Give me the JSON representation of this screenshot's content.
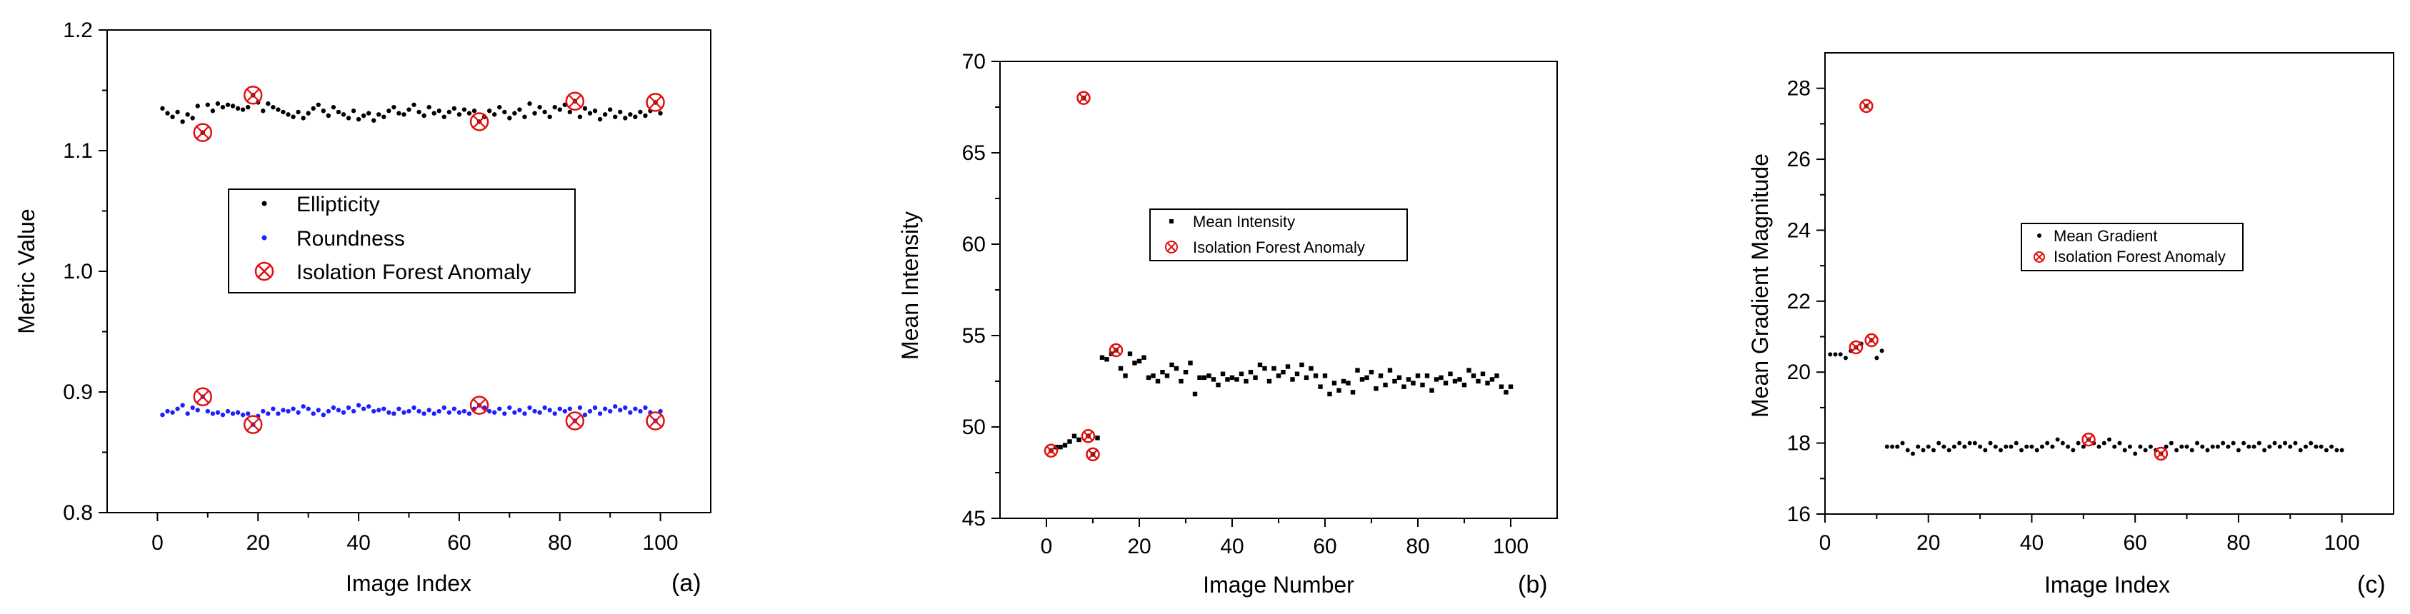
{
  "chart_data": [
    {
      "type": "scatter",
      "panel_label": "(a)",
      "xlabel": "Image Index",
      "ylabel": "Metric Value",
      "xlim": [
        -10,
        110
      ],
      "ylim": [
        0.8,
        1.2
      ],
      "x_ticks": [
        0,
        20,
        40,
        60,
        80,
        100
      ],
      "y_ticks": [
        0.8,
        0.9,
        1.0,
        1.1,
        1.2
      ],
      "x_tick_labels": [
        "0",
        "20",
        "40",
        "60",
        "80",
        "100"
      ],
      "y_tick_labels": [
        "0.8",
        "0.9",
        "1.0",
        "1.1",
        "1.2"
      ],
      "legend_position": "center",
      "colors": {
        "Ellipticity": "#000000",
        "Roundness": "#1f1fff",
        "Isolation Forest Anomaly": "#e01010"
      },
      "series": [
        {
          "name": "Ellipticity",
          "x": [
            1,
            2,
            3,
            4,
            5,
            6,
            7,
            8,
            9,
            10,
            11,
            12,
            13,
            14,
            15,
            16,
            17,
            18,
            19,
            20,
            21,
            22,
            23,
            24,
            25,
            26,
            27,
            28,
            29,
            30,
            31,
            32,
            33,
            34,
            35,
            36,
            37,
            38,
            39,
            40,
            41,
            42,
            43,
            44,
            45,
            46,
            47,
            48,
            49,
            50,
            51,
            52,
            53,
            54,
            55,
            56,
            57,
            58,
            59,
            60,
            61,
            62,
            63,
            64,
            65,
            66,
            67,
            68,
            69,
            70,
            71,
            72,
            73,
            74,
            75,
            76,
            77,
            78,
            79,
            80,
            81,
            82,
            83,
            84,
            85,
            86,
            87,
            88,
            89,
            90,
            91,
            92,
            93,
            94,
            95,
            96,
            97,
            98,
            99,
            100
          ],
          "y": [
            1.135,
            1.131,
            1.128,
            1.132,
            1.124,
            1.13,
            1.127,
            1.137,
            1.115,
            1.138,
            1.133,
            1.139,
            1.136,
            1.138,
            1.137,
            1.135,
            1.134,
            1.136,
            1.146,
            1.14,
            1.133,
            1.139,
            1.136,
            1.134,
            1.132,
            1.13,
            1.128,
            1.132,
            1.127,
            1.131,
            1.135,
            1.138,
            1.133,
            1.129,
            1.136,
            1.132,
            1.13,
            1.127,
            1.133,
            1.126,
            1.129,
            1.131,
            1.125,
            1.13,
            1.128,
            1.133,
            1.136,
            1.131,
            1.13,
            1.134,
            1.138,
            1.132,
            1.129,
            1.136,
            1.131,
            1.133,
            1.128,
            1.132,
            1.135,
            1.13,
            1.134,
            1.131,
            1.133,
            1.124,
            1.128,
            1.133,
            1.13,
            1.136,
            1.132,
            1.127,
            1.131,
            1.134,
            1.128,
            1.139,
            1.131,
            1.136,
            1.132,
            1.128,
            1.136,
            1.134,
            1.138,
            1.132,
            1.141,
            1.128,
            1.135,
            1.131,
            1.133,
            1.126,
            1.13,
            1.134,
            1.128,
            1.132,
            1.127,
            1.13,
            1.128,
            1.132,
            1.129,
            1.133,
            1.14,
            1.131
          ]
        },
        {
          "name": "Roundness",
          "x": [
            1,
            2,
            3,
            4,
            5,
            6,
            7,
            8,
            9,
            10,
            11,
            12,
            13,
            14,
            15,
            16,
            17,
            18,
            19,
            20,
            21,
            22,
            23,
            24,
            25,
            26,
            27,
            28,
            29,
            30,
            31,
            32,
            33,
            34,
            35,
            36,
            37,
            38,
            39,
            40,
            41,
            42,
            43,
            44,
            45,
            46,
            47,
            48,
            49,
            50,
            51,
            52,
            53,
            54,
            55,
            56,
            57,
            58,
            59,
            60,
            61,
            62,
            63,
            64,
            65,
            66,
            67,
            68,
            69,
            70,
            71,
            72,
            73,
            74,
            75,
            76,
            77,
            78,
            79,
            80,
            81,
            82,
            83,
            84,
            85,
            86,
            87,
            88,
            89,
            90,
            91,
            92,
            93,
            94,
            95,
            96,
            97,
            98,
            99,
            100
          ],
          "y": [
            0.881,
            0.884,
            0.883,
            0.886,
            0.889,
            0.882,
            0.887,
            0.885,
            0.896,
            0.884,
            0.882,
            0.883,
            0.881,
            0.884,
            0.882,
            0.883,
            0.881,
            0.882,
            0.873,
            0.88,
            0.884,
            0.882,
            0.886,
            0.882,
            0.885,
            0.884,
            0.886,
            0.883,
            0.888,
            0.886,
            0.882,
            0.885,
            0.881,
            0.884,
            0.887,
            0.885,
            0.883,
            0.887,
            0.884,
            0.889,
            0.886,
            0.888,
            0.884,
            0.885,
            0.886,
            0.883,
            0.882,
            0.886,
            0.883,
            0.884,
            0.887,
            0.884,
            0.882,
            0.885,
            0.882,
            0.884,
            0.887,
            0.883,
            0.886,
            0.883,
            0.884,
            0.882,
            0.886,
            0.889,
            0.887,
            0.884,
            0.883,
            0.886,
            0.882,
            0.887,
            0.883,
            0.885,
            0.882,
            0.887,
            0.884,
            0.883,
            0.887,
            0.885,
            0.882,
            0.886,
            0.884,
            0.886,
            0.876,
            0.887,
            0.881,
            0.884,
            0.887,
            0.882,
            0.886,
            0.884,
            0.888,
            0.885,
            0.887,
            0.883,
            0.886,
            0.884,
            0.887,
            0.883,
            0.876,
            0.884
          ]
        },
        {
          "name": "Isolation Forest Anomaly",
          "x": [
            9,
            19,
            64,
            83,
            99,
            9,
            19,
            64,
            83,
            99
          ],
          "y": [
            1.115,
            1.146,
            1.124,
            1.141,
            1.14,
            0.896,
            0.873,
            0.889,
            0.876,
            0.876
          ]
        }
      ]
    },
    {
      "type": "scatter",
      "panel_label": "(b)",
      "xlabel": "Image Number",
      "ylabel": "Mean Intensity",
      "xlim": [
        -10,
        110
      ],
      "ylim": [
        45,
        70
      ],
      "x_ticks": [
        0,
        20,
        40,
        60,
        80,
        100
      ],
      "y_ticks": [
        45,
        50,
        55,
        60,
        65,
        70
      ],
      "x_tick_labels": [
        "0",
        "20",
        "40",
        "60",
        "80",
        "100"
      ],
      "y_tick_labels": [
        "45",
        "50",
        "55",
        "60",
        "65",
        "70"
      ],
      "legend_position": "center-right",
      "colors": {
        "Mean Intensity": "#000000",
        "Isolation Forest Anomaly": "#e01010"
      },
      "series": [
        {
          "name": "Mean Intensity",
          "x": [
            1,
            2,
            3,
            4,
            5,
            6,
            7,
            8,
            9,
            10,
            11,
            12,
            13,
            14,
            15,
            16,
            17,
            18,
            19,
            20,
            21,
            22,
            23,
            24,
            25,
            26,
            27,
            28,
            29,
            30,
            31,
            32,
            33,
            34,
            35,
            36,
            37,
            38,
            39,
            40,
            41,
            42,
            43,
            44,
            45,
            46,
            47,
            48,
            49,
            50,
            51,
            52,
            53,
            54,
            55,
            56,
            57,
            58,
            59,
            60,
            61,
            62,
            63,
            64,
            65,
            66,
            67,
            68,
            69,
            70,
            71,
            72,
            73,
            74,
            75,
            76,
            77,
            78,
            79,
            80,
            81,
            82,
            83,
            84,
            85,
            86,
            87,
            88,
            89,
            90,
            91,
            92,
            93,
            94,
            95,
            96,
            97,
            98,
            99,
            100
          ],
          "y": [
            48.7,
            48.9,
            48.9,
            49.0,
            49.2,
            49.5,
            49.3,
            68.0,
            49.5,
            48.5,
            49.4,
            53.8,
            53.7,
            54.0,
            54.2,
            53.2,
            52.8,
            54.0,
            53.5,
            53.6,
            53.8,
            52.7,
            52.8,
            52.5,
            53.0,
            52.8,
            53.4,
            53.2,
            52.5,
            53.0,
            53.5,
            51.8,
            52.7,
            52.7,
            52.8,
            52.6,
            52.3,
            52.9,
            52.6,
            52.7,
            52.6,
            52.9,
            52.5,
            53.0,
            52.7,
            53.4,
            53.2,
            52.5,
            53.2,
            52.8,
            53.0,
            53.3,
            52.6,
            52.9,
            53.4,
            52.7,
            53.2,
            52.8,
            52.2,
            52.8,
            51.8,
            52.4,
            52.0,
            52.5,
            52.4,
            51.9,
            53.1,
            52.6,
            52.7,
            53.0,
            52.1,
            52.8,
            52.3,
            53.1,
            52.5,
            52.7,
            52.2,
            52.6,
            52.4,
            52.8,
            52.3,
            52.8,
            52.0,
            52.6,
            52.7,
            52.4,
            52.9,
            52.5,
            52.6,
            52.3,
            53.1,
            52.8,
            52.5,
            52.9,
            52.4,
            52.6,
            52.8,
            52.2,
            51.9,
            52.2
          ]
        },
        {
          "name": "Isolation Forest Anomaly",
          "x": [
            1,
            8,
            9,
            10,
            15
          ],
          "y": [
            48.7,
            68.0,
            49.5,
            48.5,
            54.2
          ]
        }
      ]
    },
    {
      "type": "scatter",
      "panel_label": "(c)",
      "xlabel": "Image Index",
      "ylabel": "Mean Gradient Magnitude",
      "xlim": [
        0,
        110
      ],
      "ylim": [
        16,
        29
      ],
      "x_ticks": [
        0,
        20,
        40,
        60,
        80,
        100
      ],
      "y_ticks": [
        16,
        18,
        20,
        22,
        24,
        26,
        28
      ],
      "x_tick_labels": [
        "0",
        "20",
        "40",
        "60",
        "80",
        "100"
      ],
      "y_tick_labels": [
        "16",
        "18",
        "20",
        "22",
        "24",
        "26",
        "28"
      ],
      "legend_position": "center-right",
      "colors": {
        "Mean Gradient": "#000000",
        "Isolation Forest Anomaly": "#e01010"
      },
      "series": [
        {
          "name": "Mean Gradient",
          "x": [
            1,
            2,
            3,
            4,
            5,
            6,
            7,
            8,
            9,
            10,
            11,
            12,
            13,
            14,
            15,
            16,
            17,
            18,
            19,
            20,
            21,
            22,
            23,
            24,
            25,
            26,
            27,
            28,
            29,
            30,
            31,
            32,
            33,
            34,
            35,
            36,
            37,
            38,
            39,
            40,
            41,
            42,
            43,
            44,
            45,
            46,
            47,
            48,
            49,
            50,
            51,
            52,
            53,
            54,
            55,
            56,
            57,
            58,
            59,
            60,
            61,
            62,
            63,
            64,
            65,
            66,
            67,
            68,
            69,
            70,
            71,
            72,
            73,
            74,
            75,
            76,
            77,
            78,
            79,
            80,
            81,
            82,
            83,
            84,
            85,
            86,
            87,
            88,
            89,
            90,
            91,
            92,
            93,
            94,
            95,
            96,
            97,
            98,
            99,
            100
          ],
          "y": [
            20.5,
            20.5,
            20.5,
            20.4,
            20.6,
            20.7,
            20.8,
            27.5,
            20.9,
            20.4,
            20.6,
            17.9,
            17.9,
            17.9,
            18.0,
            17.8,
            17.7,
            17.9,
            17.8,
            17.9,
            17.8,
            18.0,
            17.9,
            17.8,
            17.9,
            18.0,
            17.9,
            18.0,
            18.0,
            17.9,
            17.8,
            18.0,
            17.9,
            17.8,
            17.9,
            17.9,
            18.0,
            17.8,
            17.9,
            17.9,
            17.8,
            17.9,
            18.0,
            17.9,
            18.1,
            18.0,
            17.9,
            17.8,
            18.0,
            17.9,
            18.1,
            18.0,
            17.9,
            18.0,
            18.1,
            17.9,
            18.0,
            17.8,
            17.9,
            17.7,
            17.9,
            17.8,
            17.9,
            17.8,
            17.7,
            17.9,
            18.0,
            17.8,
            17.9,
            17.9,
            17.8,
            18.0,
            17.9,
            17.8,
            17.9,
            17.9,
            18.0,
            17.9,
            18.0,
            17.8,
            18.0,
            17.9,
            17.9,
            18.0,
            17.8,
            17.9,
            18.0,
            17.9,
            18.0,
            17.9,
            18.0,
            17.8,
            17.9,
            18.0,
            17.9,
            17.9,
            17.8,
            17.9,
            17.8,
            17.8
          ]
        },
        {
          "name": "Isolation Forest Anomaly",
          "x": [
            6,
            8,
            9,
            51,
            65
          ],
          "y": [
            20.7,
            27.5,
            20.9,
            18.1,
            17.7
          ]
        }
      ]
    }
  ]
}
